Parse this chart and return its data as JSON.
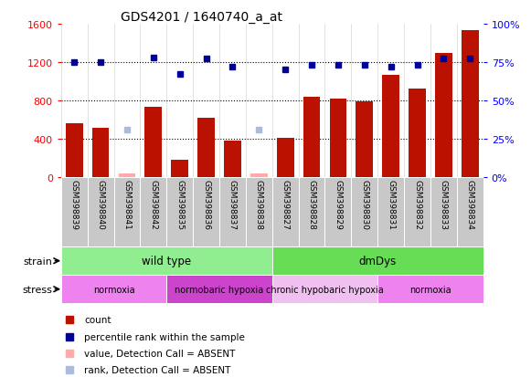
{
  "title": "GDS4201 / 1640740_a_at",
  "samples": [
    "GSM398839",
    "GSM398840",
    "GSM398841",
    "GSM398842",
    "GSM398835",
    "GSM398836",
    "GSM398837",
    "GSM398838",
    "GSM398827",
    "GSM398828",
    "GSM398829",
    "GSM398830",
    "GSM398831",
    "GSM398832",
    "GSM398833",
    "GSM398834"
  ],
  "count_values": [
    560,
    510,
    30,
    730,
    175,
    620,
    380,
    30,
    410,
    840,
    820,
    790,
    1060,
    920,
    1290,
    1530
  ],
  "count_absent": [
    false,
    false,
    true,
    false,
    false,
    false,
    false,
    true,
    false,
    false,
    false,
    false,
    false,
    false,
    false,
    false
  ],
  "rank_values": [
    75,
    75,
    31,
    78,
    67,
    77,
    72,
    31,
    70,
    73,
    73,
    73,
    72,
    73,
    77,
    77
  ],
  "rank_absent": [
    false,
    false,
    true,
    false,
    false,
    false,
    false,
    true,
    false,
    false,
    false,
    false,
    false,
    false,
    false,
    false
  ],
  "ylim_left": [
    0,
    1600
  ],
  "ylim_right": [
    0,
    100
  ],
  "yticks_left": [
    0,
    400,
    800,
    1200,
    1600
  ],
  "yticks_right": [
    0,
    25,
    50,
    75,
    100
  ],
  "strain_groups": [
    {
      "label": "wild type",
      "start": 0,
      "end": 8,
      "color": "#90EE90"
    },
    {
      "label": "dmDys",
      "start": 8,
      "end": 16,
      "color": "#66DD55"
    }
  ],
  "stress_groups": [
    {
      "label": "normoxia",
      "start": 0,
      "end": 4,
      "color": "#EE82EE"
    },
    {
      "label": "normobaric hypoxia",
      "start": 4,
      "end": 8,
      "color": "#CC44CC"
    },
    {
      "label": "chronic hypobaric hypoxia",
      "start": 8,
      "end": 12,
      "color": "#F0C0F0"
    },
    {
      "label": "normoxia",
      "start": 12,
      "end": 16,
      "color": "#EE82EE"
    }
  ],
  "bar_color_present": "#BB1100",
  "bar_color_absent": "#FFAAAA",
  "rank_color_present": "#000099",
  "rank_color_absent": "#AABBDD",
  "legend_items": [
    {
      "label": "count",
      "color": "#BB1100"
    },
    {
      "label": "percentile rank within the sample",
      "color": "#000099"
    },
    {
      "label": "value, Detection Call = ABSENT",
      "color": "#FFAAAA"
    },
    {
      "label": "rank, Detection Call = ABSENT",
      "color": "#AABBDD"
    }
  ],
  "fig_width": 5.81,
  "fig_height": 4.14,
  "dpi": 100
}
